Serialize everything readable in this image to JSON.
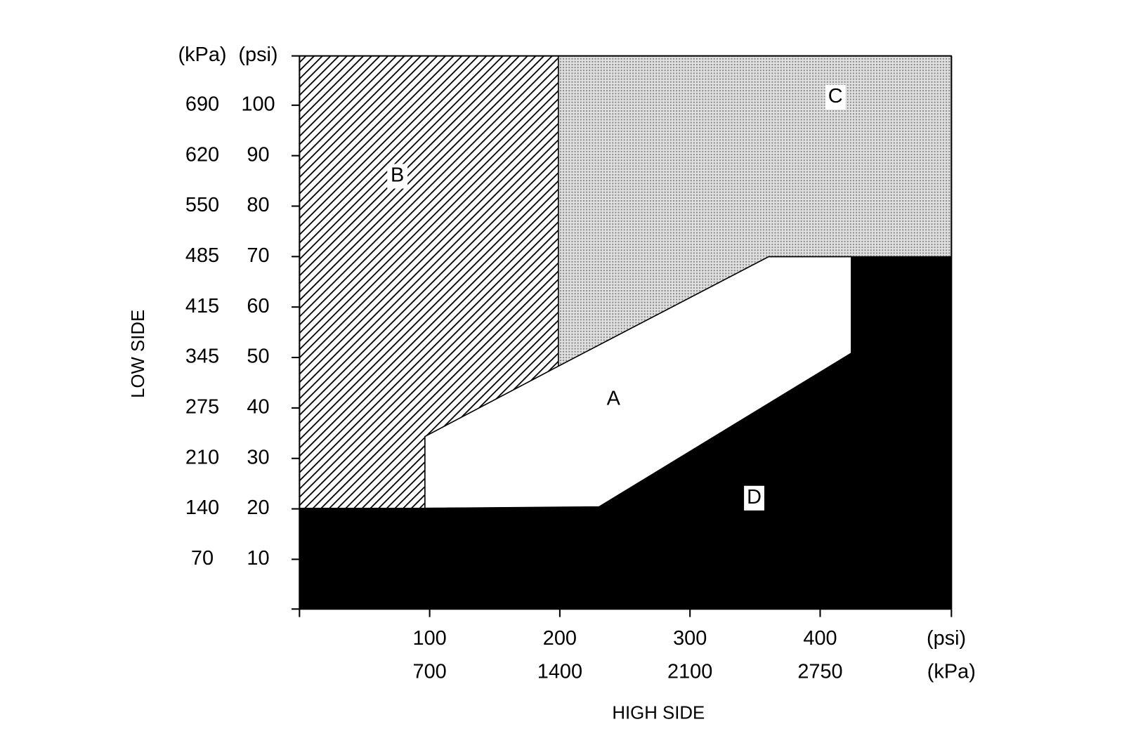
{
  "y_axis": {
    "title": "LOW SIDE",
    "unit_labels": [
      "(kPa)",
      "(psi)"
    ],
    "ticks": [
      {
        "kpa": "690",
        "psi": "100"
      },
      {
        "kpa": "620",
        "psi": "90"
      },
      {
        "kpa": "550",
        "psi": "80"
      },
      {
        "kpa": "485",
        "psi": "70"
      },
      {
        "kpa": "415",
        "psi": "60"
      },
      {
        "kpa": "345",
        "psi": "50"
      },
      {
        "kpa": "275",
        "psi": "40"
      },
      {
        "kpa": "210",
        "psi": "30"
      },
      {
        "kpa": "140",
        "psi": "20"
      },
      {
        "kpa": "70",
        "psi": "10"
      }
    ]
  },
  "x_axis": {
    "title": "HIGH SIDE",
    "unit_labels": [
      "(psi)",
      "(kPa)"
    ],
    "ticks": [
      {
        "psi": "100",
        "kpa": "700"
      },
      {
        "psi": "200",
        "kpa": "1400"
      },
      {
        "psi": "300",
        "kpa": "2100"
      },
      {
        "psi": "400",
        "kpa": "2750"
      }
    ]
  },
  "regions": [
    {
      "label": "A"
    },
    {
      "label": "B"
    },
    {
      "label": "C"
    },
    {
      "label": "D"
    }
  ]
}
